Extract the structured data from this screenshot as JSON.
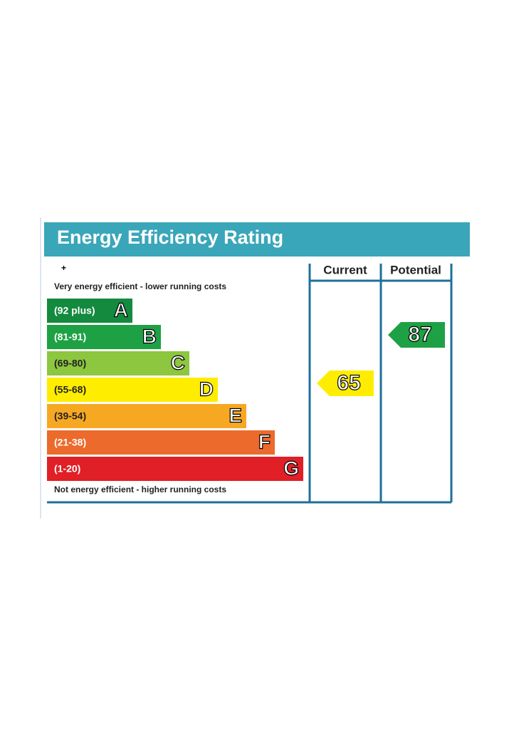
{
  "title": "Energy Efficiency Rating",
  "columns": [
    "Current",
    "Potential"
  ],
  "top_note": "Very energy efficient - lower running costs",
  "bottom_note": "Not energy efficient - higher running costs",
  "bands": [
    {
      "range": "(92 plus)",
      "letter": "A",
      "color": "#138a3e"
    },
    {
      "range": "(81-91)",
      "letter": "B",
      "color": "#1ea144"
    },
    {
      "range": "(69-80)",
      "letter": "C",
      "color": "#8dc63f"
    },
    {
      "range": "(55-68)",
      "letter": "D",
      "color": "#ffed00"
    },
    {
      "range": "(39-54)",
      "letter": "E",
      "color": "#f7a823"
    },
    {
      "range": "(21-38)",
      "letter": "F",
      "color": "#ec6a2b"
    },
    {
      "range": "(1-20)",
      "letter": "G",
      "color": "#e01f26"
    }
  ],
  "current": {
    "value": 65,
    "color": "#ffed00"
  },
  "potential": {
    "value": 87,
    "color": "#1ea144"
  }
}
